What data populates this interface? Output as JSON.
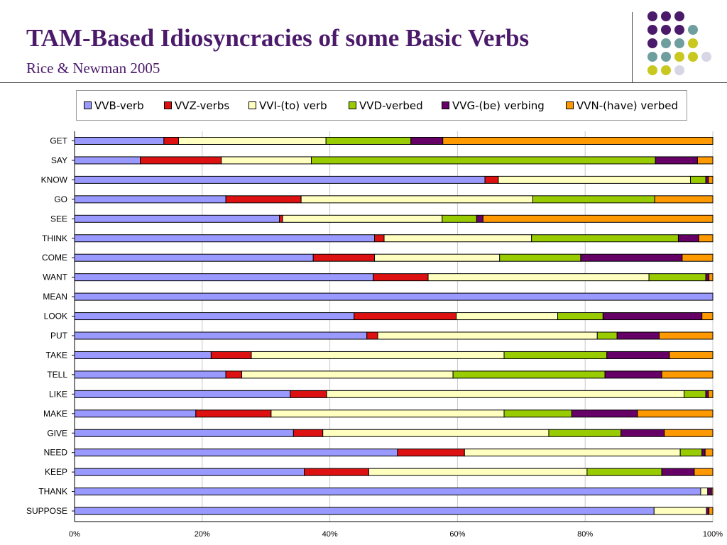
{
  "header": {
    "title": "TAM-Based Idiosyncracies of  some Basic Verbs",
    "subtitle": "Rice & Newman 2005"
  },
  "decoration": {
    "dot_colors": {
      "purple": "#4b1a6b",
      "teal": "#6f9e9e",
      "lime": "#c8c820",
      "lavender": "#d6d6e4"
    },
    "dot_grid": [
      [
        "purple",
        "purple",
        "purple"
      ],
      [
        "purple",
        "purple",
        "purple",
        "teal"
      ],
      [
        "purple",
        "teal",
        "teal",
        "lime"
      ],
      [
        "teal",
        "teal",
        "lime",
        "lime",
        "lavender"
      ],
      [
        "lime",
        "lime",
        "lavender"
      ]
    ]
  },
  "chart_data": {
    "type": "bar",
    "orientation": "horizontal",
    "stacked": "percent",
    "categories": [
      "GET",
      "SAY",
      "KNOW",
      "GO",
      "SEE",
      "THINK",
      "COME",
      "WANT",
      "MEAN",
      "LOOK",
      "PUT",
      "TAKE",
      "TELL",
      "LIKE",
      "MAKE",
      "GIVE",
      "NEED",
      "KEEP",
      "THANK",
      "SUPPOSE"
    ],
    "series": [
      {
        "name": "VVB-verb",
        "color": "#9999ff",
        "values": [
          14,
          10.3,
          64.3,
          23.7,
          32.1,
          47,
          37.4,
          46.8,
          100,
          43.8,
          45.8,
          21.4,
          23.7,
          33.8,
          19,
          34.3,
          50.6,
          36,
          98.1,
          90.8
        ]
      },
      {
        "name": "VVZ-verbs",
        "color": "#dd1111",
        "values": [
          2.3,
          12.7,
          2.1,
          11.8,
          0.5,
          1.5,
          9.6,
          8.6,
          0,
          16,
          1.7,
          6.3,
          2.5,
          5.7,
          11.8,
          4.6,
          10.5,
          10.1,
          0,
          0
        ]
      },
      {
        "name": "VVI-(to) verb",
        "color": "#ffffc0",
        "values": [
          23.1,
          14.1,
          30.1,
          36.3,
          25,
          23.1,
          19.6,
          34.6,
          0,
          15.9,
          34.4,
          39.6,
          33.1,
          56,
          36.5,
          35.4,
          33.8,
          34.2,
          1.1,
          8.2
        ]
      },
      {
        "name": "VVD-verbed",
        "color": "#99cc00",
        "values": [
          13.3,
          53.9,
          2.4,
          19.1,
          5.4,
          23,
          12.7,
          8.9,
          0,
          7.1,
          3.1,
          16.1,
          23.8,
          3.4,
          10.6,
          11.3,
          3.4,
          11.7,
          0,
          0
        ]
      },
      {
        "name": "VVG-(be) verbing",
        "color": "#660066",
        "values": [
          5,
          6.6,
          0.4,
          0,
          1,
          3.2,
          15.9,
          0.5,
          0,
          15.5,
          6.6,
          9.8,
          8.9,
          0.4,
          10.3,
          6.8,
          0.5,
          5.1,
          0.6,
          0.4
        ]
      },
      {
        "name": "VVN-(have) verbed",
        "color": "#ff9900",
        "values": [
          42.3,
          2.4,
          0.7,
          9.1,
          36,
          2.2,
          4.8,
          0.6,
          0,
          1.7,
          8.4,
          6.8,
          8,
          0.7,
          11.8,
          7.6,
          1.2,
          2.9,
          0.2,
          0.6
        ]
      }
    ],
    "xlim": [
      0,
      100
    ],
    "x_ticks": [
      "0%",
      "20%",
      "40%",
      "60%",
      "80%",
      "100%"
    ],
    "grid": true,
    "legend_placement": "top"
  }
}
